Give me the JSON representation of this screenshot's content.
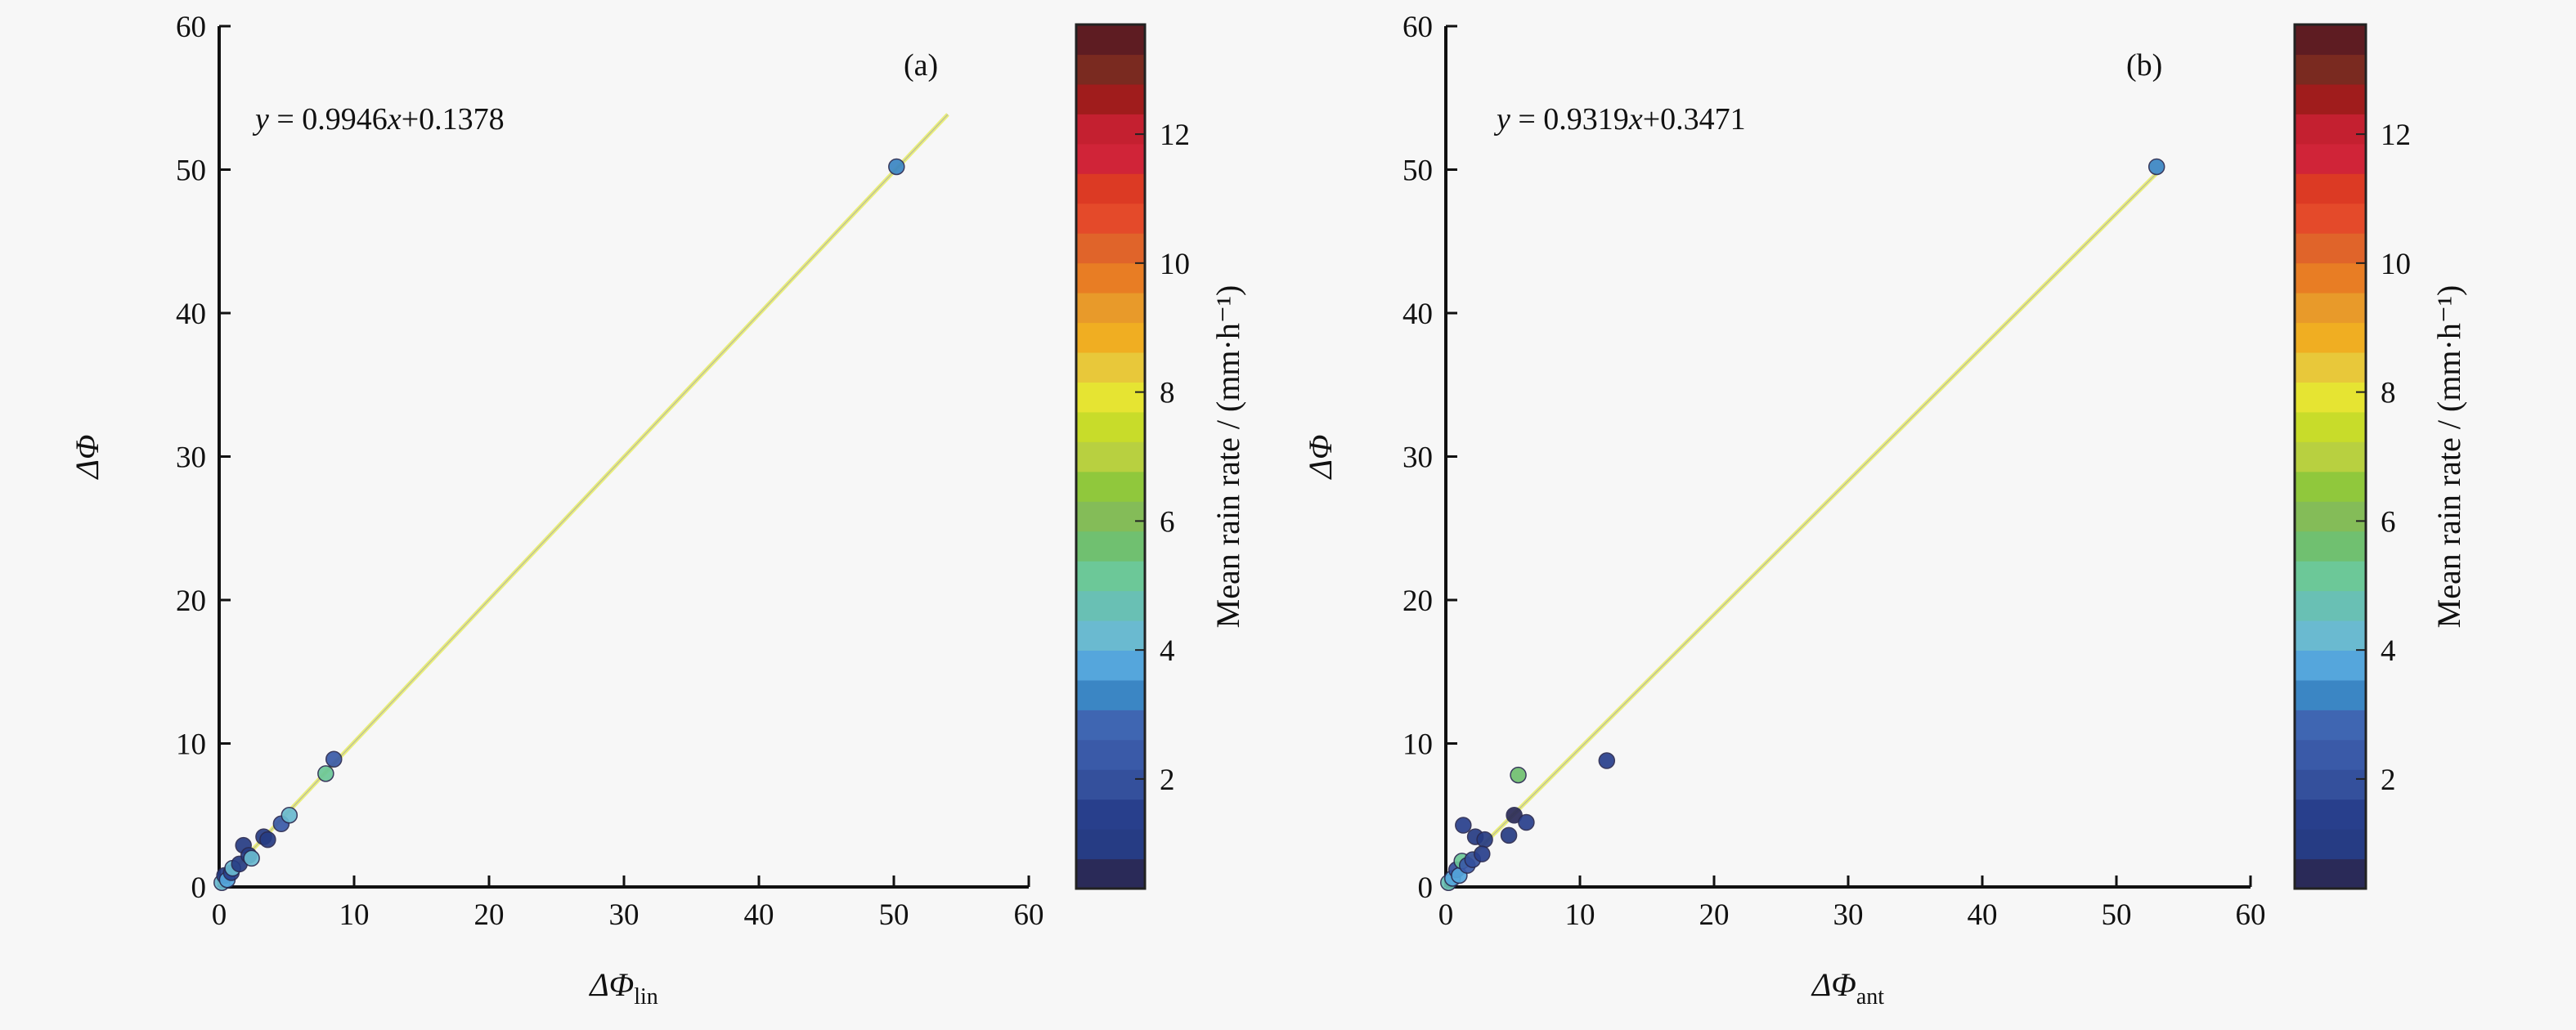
{
  "chart_data": [
    {
      "type": "scatter",
      "panel_label": "(a)",
      "xlabel": {
        "main": "ΔΦ",
        "sub": "lin"
      },
      "ylabel": "ΔΦ",
      "xlim": [
        0,
        60
      ],
      "ylim": [
        0,
        60
      ],
      "xticks": [
        "0",
        "10",
        "20",
        "30",
        "40",
        "50",
        "60"
      ],
      "yticks": [
        "0",
        "10",
        "20",
        "30",
        "40",
        "50",
        "60"
      ],
      "equation": {
        "y": "y",
        "eq": " = 0.9946",
        "x": "x",
        "rest": "+0.1378"
      },
      "fit": {
        "slope": 0.9946,
        "intercept": 0.1378,
        "x_range": [
          0,
          54
        ]
      },
      "points": [
        {
          "x": 0.2,
          "y": 0.3,
          "rain": 4.2
        },
        {
          "x": 0.4,
          "y": 0.8,
          "rain": 1.2
        },
        {
          "x": 0.6,
          "y": 0.5,
          "rain": 3.8
        },
        {
          "x": 0.9,
          "y": 1.0,
          "rain": 1.5
        },
        {
          "x": 1.0,
          "y": 1.3,
          "rain": 4.0
        },
        {
          "x": 1.5,
          "y": 1.6,
          "rain": 1.0
        },
        {
          "x": 1.8,
          "y": 2.9,
          "rain": 0.9
        },
        {
          "x": 2.2,
          "y": 2.2,
          "rain": 1.2
        },
        {
          "x": 2.4,
          "y": 2.0,
          "rain": 4.1
        },
        {
          "x": 3.3,
          "y": 3.5,
          "rain": 1.1
        },
        {
          "x": 3.6,
          "y": 3.3,
          "rain": 0.9
        },
        {
          "x": 4.6,
          "y": 4.4,
          "rain": 2.2
        },
        {
          "x": 5.2,
          "y": 5.0,
          "rain": 4.3
        },
        {
          "x": 7.9,
          "y": 7.9,
          "rain": 5.3
        },
        {
          "x": 8.5,
          "y": 8.9,
          "rain": 2.5
        },
        {
          "x": 50.2,
          "y": 50.2,
          "rain": 3.4
        }
      ],
      "colorbar": {
        "label": "Mean rain rate / (mm·h⁻¹)",
        "range": [
          0.3,
          13.7
        ],
        "ticks": [
          "2",
          "4",
          "6",
          "8",
          "10",
          "12"
        ]
      }
    },
    {
      "type": "scatter",
      "panel_label": "(b)",
      "xlabel": {
        "main": "ΔΦ",
        "sub": "ant"
      },
      "ylabel": "ΔΦ",
      "xlim": [
        0,
        60
      ],
      "ylim": [
        0,
        60
      ],
      "xticks": [
        "0",
        "10",
        "20",
        "30",
        "40",
        "50",
        "60"
      ],
      "yticks": [
        "0",
        "10",
        "20",
        "30",
        "40",
        "50",
        "60"
      ],
      "equation": {
        "y": "y",
        "eq": " = 0.9319",
        "x": "x",
        "rest": "+0.3471"
      },
      "fit": {
        "slope": 0.9319,
        "intercept": 0.3471,
        "x_range": [
          0,
          53
        ]
      },
      "points": [
        {
          "x": 0.2,
          "y": 0.3,
          "rain": 4.5
        },
        {
          "x": 0.5,
          "y": 0.6,
          "rain": 3.8
        },
        {
          "x": 0.8,
          "y": 1.2,
          "rain": 2.0
        },
        {
          "x": 1.0,
          "y": 0.8,
          "rain": 3.6
        },
        {
          "x": 1.2,
          "y": 1.8,
          "rain": 5.0
        },
        {
          "x": 1.6,
          "y": 1.5,
          "rain": 2.2
        },
        {
          "x": 2.0,
          "y": 1.9,
          "rain": 2.0
        },
        {
          "x": 1.3,
          "y": 4.3,
          "rain": 1.3
        },
        {
          "x": 2.2,
          "y": 3.5,
          "rain": 0.9
        },
        {
          "x": 2.9,
          "y": 3.3,
          "rain": 1.1
        },
        {
          "x": 2.7,
          "y": 2.3,
          "rain": 1.5
        },
        {
          "x": 4.7,
          "y": 3.6,
          "rain": 1.2
        },
        {
          "x": 5.1,
          "y": 5.0,
          "rain": 0.6
        },
        {
          "x": 6.0,
          "y": 4.5,
          "rain": 1.4
        },
        {
          "x": 5.4,
          "y": 7.8,
          "rain": 5.5
        },
        {
          "x": 12.0,
          "y": 8.8,
          "rain": 1.3
        },
        {
          "x": 53.0,
          "y": 50.2,
          "rain": 3.4
        }
      ],
      "colorbar": {
        "label": "Mean rain rate / (mm·h⁻¹)",
        "range": [
          0.3,
          13.7
        ],
        "ticks": [
          "2",
          "4",
          "6",
          "8",
          "10",
          "12"
        ]
      }
    }
  ],
  "colormap": [
    "#2a2a58",
    "#263c84",
    "#283f8c",
    "#34509c",
    "#3a5aa8",
    "#3f66b2",
    "#3b86c4",
    "#55a6dc",
    "#6abad0",
    "#69c0b4",
    "#6cc898",
    "#70c070",
    "#84bc58",
    "#90c83c",
    "#b8d040",
    "#c8dc2a",
    "#e6e432",
    "#e8c83a",
    "#f0ae22",
    "#e89a2a",
    "#e87d24",
    "#e0642a",
    "#e44a2a",
    "#dc3a24",
    "#d02438",
    "#c42030",
    "#a01c1c",
    "#7a2a20",
    "#5e1c22"
  ]
}
